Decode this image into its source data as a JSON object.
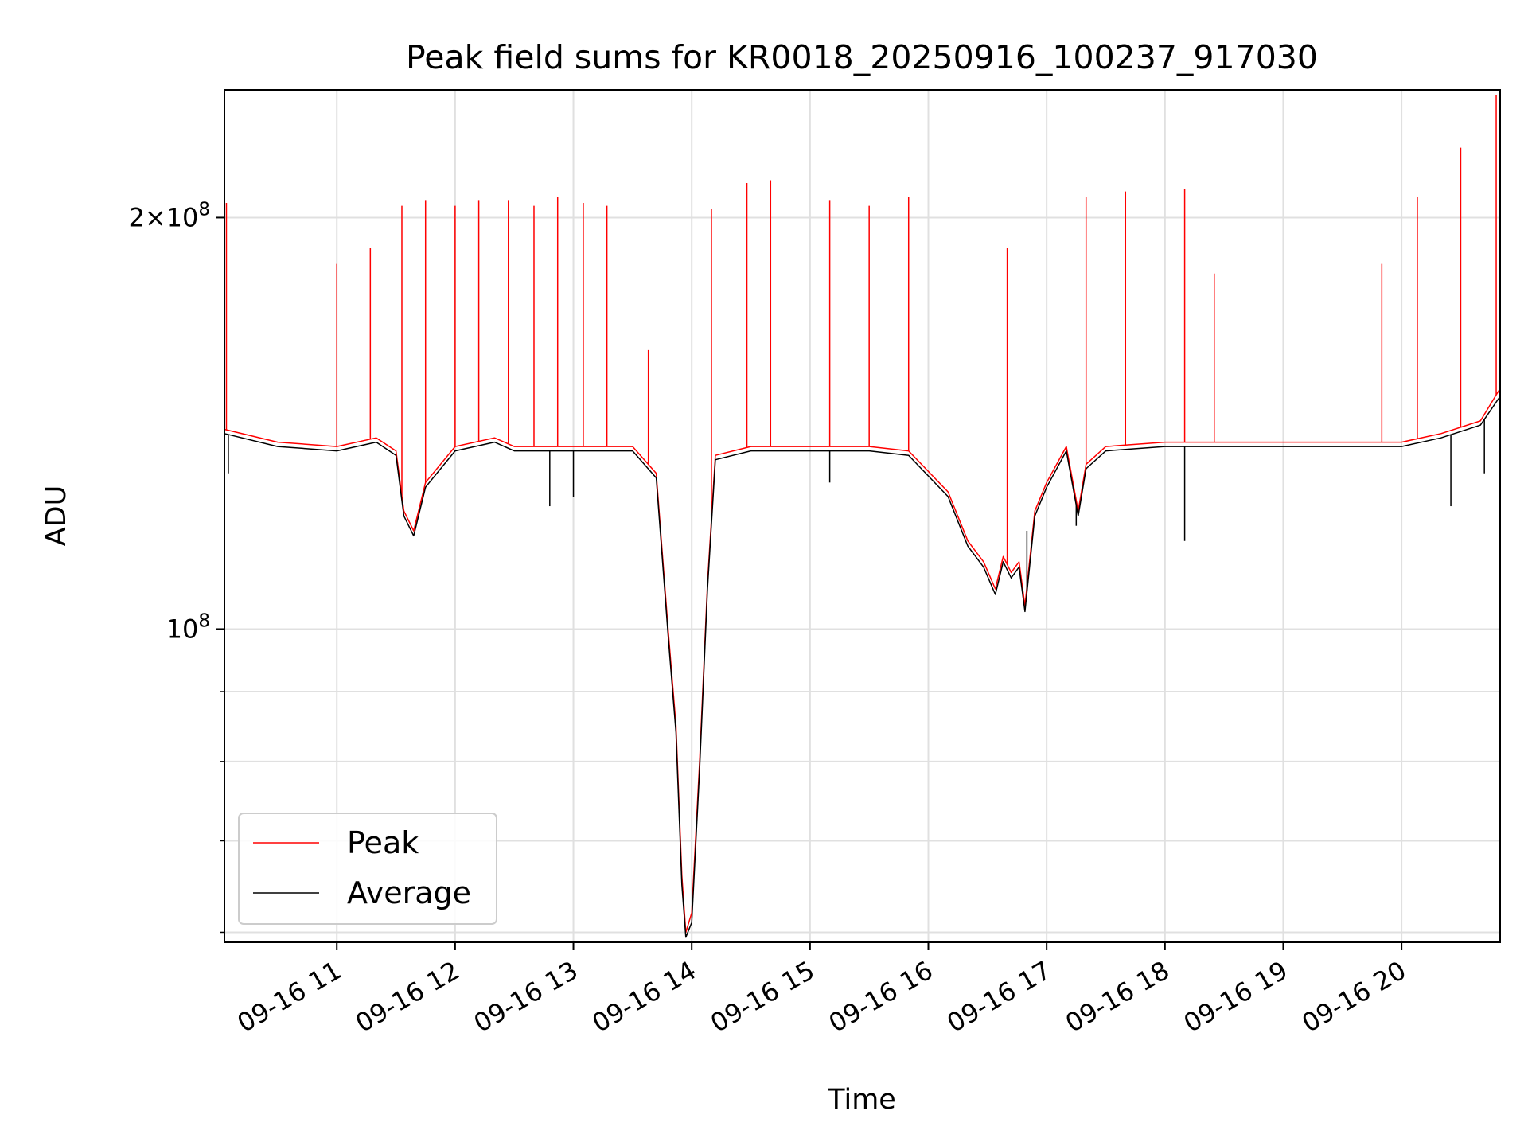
{
  "chart_data": {
    "type": "line",
    "title": "Peak field sums for KR0018_20250916_100237_917030",
    "xlabel": "Time",
    "ylabel": "ADU",
    "yscale": "log",
    "ylim": [
      59000000,
      248000000
    ],
    "xlim": [
      "2025-09-16 10:03",
      "2025-09-16 20:50"
    ],
    "grid": true,
    "legend_position": "lower-left",
    "x_tick_labels": [
      "09-16 11",
      "09-16 12",
      "09-16 13",
      "09-16 14",
      "09-16 15",
      "09-16 16",
      "09-16 17",
      "09-16 18",
      "09-16 19",
      "09-16 20"
    ],
    "x_ticks": [
      "2025-09-16 11:00",
      "2025-09-16 12:00",
      "2025-09-16 13:00",
      "2025-09-16 14:00",
      "2025-09-16 15:00",
      "2025-09-16 16:00",
      "2025-09-16 17:00",
      "2025-09-16 18:00",
      "2025-09-16 19:00",
      "2025-09-16 20:00"
    ],
    "y_major_ticks": [
      {
        "value": 100000000,
        "base": "10",
        "exponent": "8"
      },
      {
        "value": 200000000,
        "coefficient": "2",
        "base": "10",
        "exponent": "8"
      }
    ],
    "y_minor_ticks": [
      60000000,
      70000000,
      80000000,
      90000000,
      300000000
    ],
    "series": [
      {
        "name": "Peak",
        "color": "#ff0000",
        "x": [
          "2025-09-16 10:03",
          "2025-09-16 10:30",
          "2025-09-16 11:00",
          "2025-09-16 11:20",
          "2025-09-16 11:30",
          "2025-09-16 11:34",
          "2025-09-16 11:39",
          "2025-09-16 11:45",
          "2025-09-16 12:00",
          "2025-09-16 12:20",
          "2025-09-16 12:30",
          "2025-09-16 13:00",
          "2025-09-16 13:30",
          "2025-09-16 13:42",
          "2025-09-16 13:48",
          "2025-09-16 13:52",
          "2025-09-16 13:55",
          "2025-09-16 13:57",
          "2025-09-16 14:00",
          "2025-09-16 14:04",
          "2025-09-16 14:08",
          "2025-09-16 14:12",
          "2025-09-16 14:30",
          "2025-09-16 15:00",
          "2025-09-16 15:30",
          "2025-09-16 15:50",
          "2025-09-16 16:10",
          "2025-09-16 16:20",
          "2025-09-16 16:28",
          "2025-09-16 16:34",
          "2025-09-16 16:38",
          "2025-09-16 16:42",
          "2025-09-16 16:46",
          "2025-09-16 16:49",
          "2025-09-16 16:54",
          "2025-09-16 17:00",
          "2025-09-16 17:10",
          "2025-09-16 17:16",
          "2025-09-16 17:20",
          "2025-09-16 17:30",
          "2025-09-16 18:00",
          "2025-09-16 18:30",
          "2025-09-16 19:00",
          "2025-09-16 19:30",
          "2025-09-16 20:00",
          "2025-09-16 20:20",
          "2025-09-16 20:40",
          "2025-09-16 20:50"
        ],
        "values": [
          140000000,
          137000000,
          136000000,
          138000000,
          135000000,
          122000000,
          118000000,
          128000000,
          136000000,
          138000000,
          136000000,
          136000000,
          136000000,
          130000000,
          100000000,
          85000000,
          66000000,
          60000000,
          62000000,
          80000000,
          108000000,
          134000000,
          136000000,
          136000000,
          136000000,
          135000000,
          126000000,
          116000000,
          112000000,
          107000000,
          113000000,
          110000000,
          112000000,
          104000000,
          122000000,
          128000000,
          136000000,
          122000000,
          132000000,
          136000000,
          137000000,
          137000000,
          137000000,
          137000000,
          137000000,
          139000000,
          142000000,
          150000000
        ],
        "spikes": [
          {
            "x": "2025-09-16 10:04",
            "value": 205000000
          },
          {
            "x": "2025-09-16 11:00",
            "value": 185000000
          },
          {
            "x": "2025-09-16 11:17",
            "value": 190000000
          },
          {
            "x": "2025-09-16 11:33",
            "value": 204000000
          },
          {
            "x": "2025-09-16 11:45",
            "value": 206000000
          },
          {
            "x": "2025-09-16 12:00",
            "value": 204000000
          },
          {
            "x": "2025-09-16 12:12",
            "value": 206000000
          },
          {
            "x": "2025-09-16 12:27",
            "value": 206000000
          },
          {
            "x": "2025-09-16 12:40",
            "value": 204000000
          },
          {
            "x": "2025-09-16 12:52",
            "value": 207000000
          },
          {
            "x": "2025-09-16 13:05",
            "value": 205000000
          },
          {
            "x": "2025-09-16 13:17",
            "value": 204000000
          },
          {
            "x": "2025-09-16 13:38",
            "value": 160000000
          },
          {
            "x": "2025-09-16 14:10",
            "value": 203000000
          },
          {
            "x": "2025-09-16 14:28",
            "value": 212000000
          },
          {
            "x": "2025-09-16 14:40",
            "value": 213000000
          },
          {
            "x": "2025-09-16 15:10",
            "value": 206000000
          },
          {
            "x": "2025-09-16 15:30",
            "value": 204000000
          },
          {
            "x": "2025-09-16 15:50",
            "value": 207000000
          },
          {
            "x": "2025-09-16 16:40",
            "value": 190000000
          },
          {
            "x": "2025-09-16 17:20",
            "value": 207000000
          },
          {
            "x": "2025-09-16 17:40",
            "value": 209000000
          },
          {
            "x": "2025-09-16 18:10",
            "value": 210000000
          },
          {
            "x": "2025-09-16 18:25",
            "value": 182000000
          },
          {
            "x": "2025-09-16 19:50",
            "value": 185000000
          },
          {
            "x": "2025-09-16 20:08",
            "value": 207000000
          },
          {
            "x": "2025-09-16 20:30",
            "value": 225000000
          },
          {
            "x": "2025-09-16 20:48",
            "value": 246000000
          }
        ]
      },
      {
        "name": "Average",
        "color": "#000000",
        "x": [
          "2025-09-16 10:03",
          "2025-09-16 10:30",
          "2025-09-16 11:00",
          "2025-09-16 11:20",
          "2025-09-16 11:30",
          "2025-09-16 11:34",
          "2025-09-16 11:39",
          "2025-09-16 11:45",
          "2025-09-16 12:00",
          "2025-09-16 12:20",
          "2025-09-16 12:30",
          "2025-09-16 13:00",
          "2025-09-16 13:30",
          "2025-09-16 13:42",
          "2025-09-16 13:48",
          "2025-09-16 13:52",
          "2025-09-16 13:55",
          "2025-09-16 13:57",
          "2025-09-16 14:00",
          "2025-09-16 14:04",
          "2025-09-16 14:08",
          "2025-09-16 14:12",
          "2025-09-16 14:30",
          "2025-09-16 15:00",
          "2025-09-16 15:30",
          "2025-09-16 15:50",
          "2025-09-16 16:10",
          "2025-09-16 16:20",
          "2025-09-16 16:28",
          "2025-09-16 16:34",
          "2025-09-16 16:38",
          "2025-09-16 16:42",
          "2025-09-16 16:46",
          "2025-09-16 16:49",
          "2025-09-16 16:54",
          "2025-09-16 17:00",
          "2025-09-16 17:10",
          "2025-09-16 17:16",
          "2025-09-16 17:20",
          "2025-09-16 17:30",
          "2025-09-16 18:00",
          "2025-09-16 18:30",
          "2025-09-16 19:00",
          "2025-09-16 19:30",
          "2025-09-16 20:00",
          "2025-09-16 20:20",
          "2025-09-16 20:40",
          "2025-09-16 20:50"
        ],
        "values": [
          139000000,
          136000000,
          135000000,
          137000000,
          134000000,
          121000000,
          117000000,
          127000000,
          135000000,
          137000000,
          135000000,
          135000000,
          135000000,
          129000000,
          99000000,
          84000000,
          65000000,
          59500000,
          61000000,
          79000000,
          107000000,
          133000000,
          135000000,
          135000000,
          135000000,
          134000000,
          125000000,
          115000000,
          111000000,
          106000000,
          112000000,
          109000000,
          111000000,
          103000000,
          121000000,
          127000000,
          135000000,
          121000000,
          131000000,
          135000000,
          136000000,
          136000000,
          136000000,
          136000000,
          136000000,
          138000000,
          141000000,
          148000000
        ],
        "dips": [
          {
            "x": "2025-09-16 10:05",
            "value": 130000000
          },
          {
            "x": "2025-09-16 12:48",
            "value": 123000000
          },
          {
            "x": "2025-09-16 13:00",
            "value": 125000000
          },
          {
            "x": "2025-09-16 15:10",
            "value": 128000000
          },
          {
            "x": "2025-09-16 16:50",
            "value": 118000000
          },
          {
            "x": "2025-09-16 17:15",
            "value": 119000000
          },
          {
            "x": "2025-09-16 18:10",
            "value": 116000000
          },
          {
            "x": "2025-09-16 20:25",
            "value": 123000000
          },
          {
            "x": "2025-09-16 20:42",
            "value": 130000000
          }
        ]
      }
    ]
  }
}
